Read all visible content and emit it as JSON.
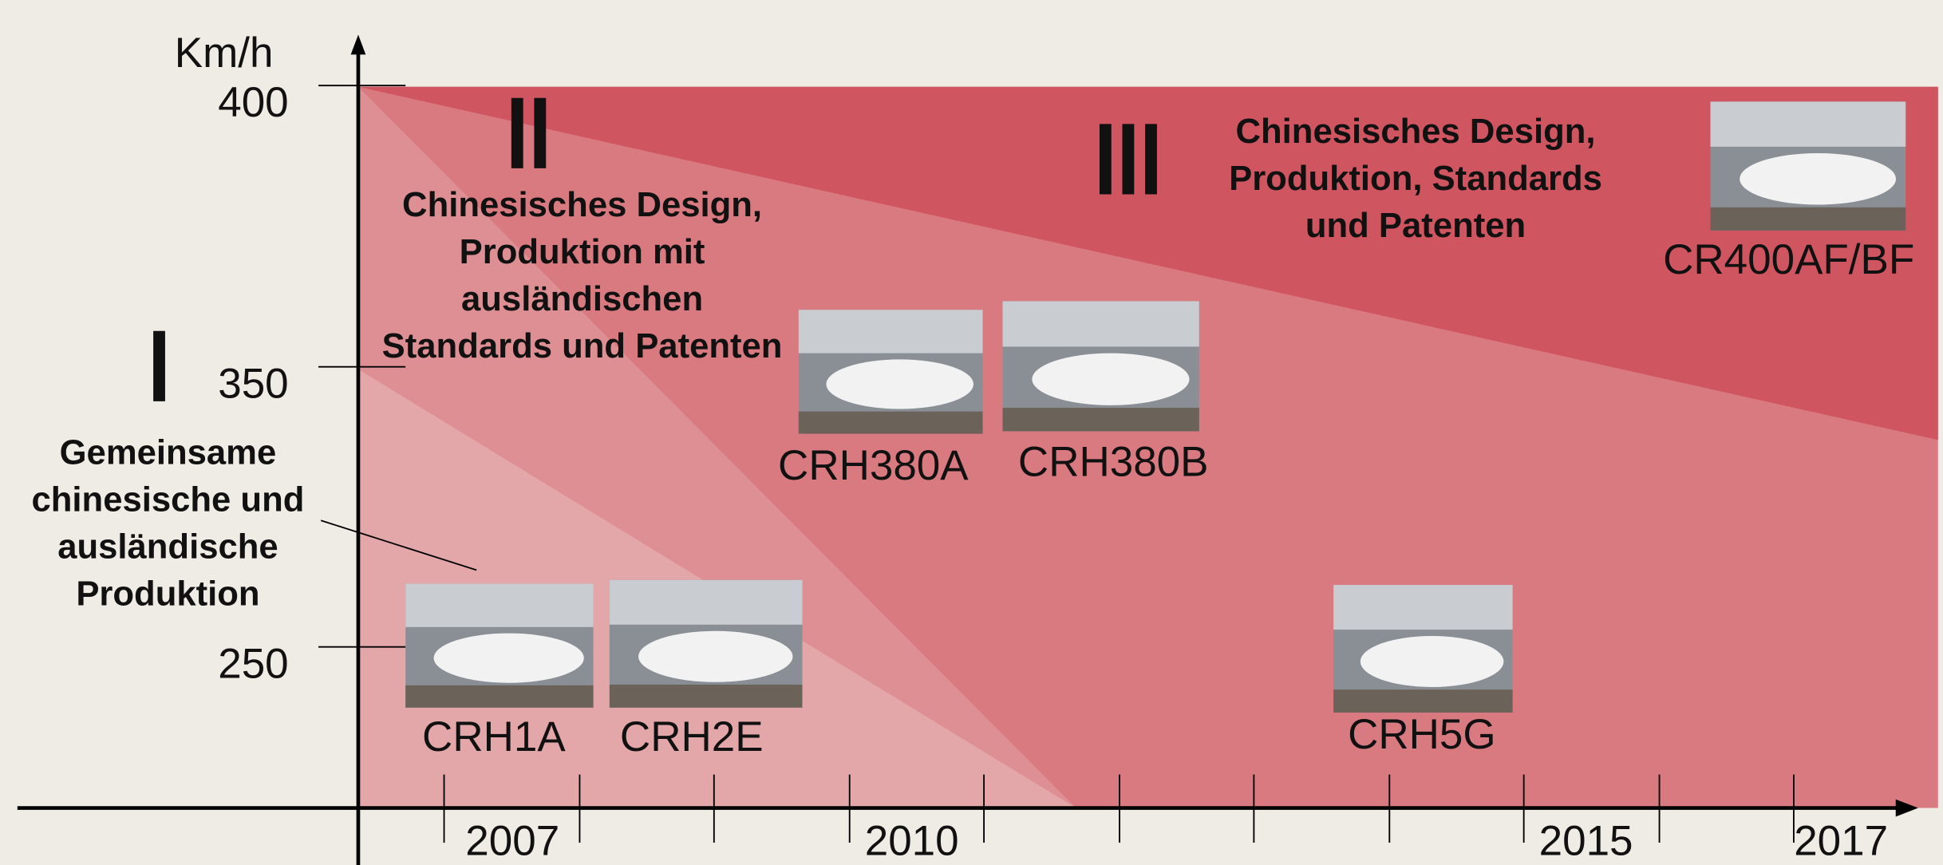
{
  "y_axis": {
    "label": "Km/h",
    "ticks": [
      "400",
      "350",
      "250"
    ]
  },
  "x_axis": {
    "ticks": [
      "2007",
      "2010",
      "2015",
      "2017"
    ]
  },
  "phases": [
    {
      "numeral": "I",
      "lines": [
        "Gemeinsame",
        "chinesische und",
        "ausländische",
        "Produktion"
      ]
    },
    {
      "numeral": "II",
      "lines": [
        "Chinesisches Design,",
        "Produktion mit",
        "ausländischen",
        "Standards und Patenten"
      ]
    },
    {
      "numeral": "III",
      "lines": [
        "Chinesisches Design,",
        "Produktion, Standards",
        "und Patenten"
      ]
    }
  ],
  "trains": [
    "CRH1A",
    "CRH2E",
    "CRH380A",
    "CRH380B",
    "CRH5G",
    "CR400AF/BF"
  ]
}
